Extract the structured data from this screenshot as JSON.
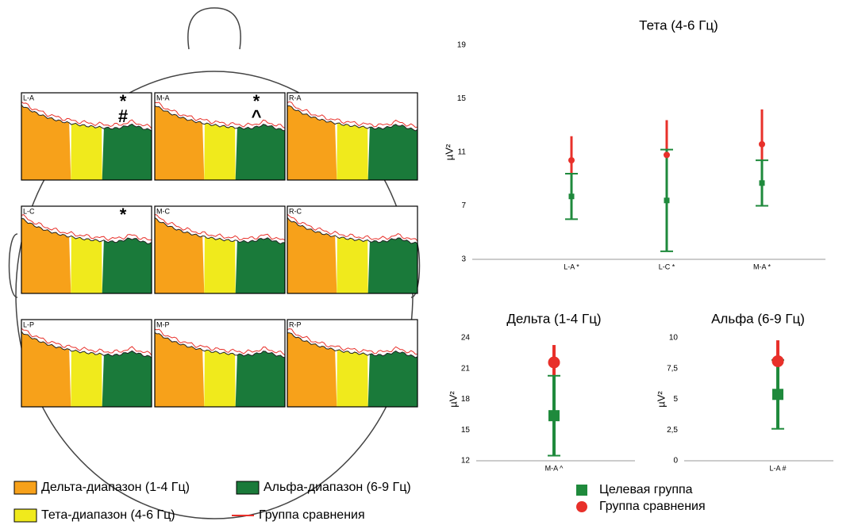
{
  "topomap": {
    "panels": [
      {
        "label": "L-A",
        "marks": [
          "*",
          "#"
        ]
      },
      {
        "label": "M-A",
        "marks": [
          "*",
          "^"
        ]
      },
      {
        "label": "R-A"
      },
      {
        "label": "L-C",
        "marks": [
          "*"
        ]
      },
      {
        "label": "M-C"
      },
      {
        "label": "R-C"
      },
      {
        "label": "L-P"
      },
      {
        "label": "M-P"
      },
      {
        "label": "R-P"
      }
    ],
    "legend": [
      "Дельта-диапазон (1-4 Гц)",
      "Альфа-диапазон (6-9 Гц)",
      "Тета-диапазон (4-6 Гц)",
      "Группа сравнения"
    ]
  },
  "chart_data": [
    {
      "type": "errorbar",
      "title": "Тета (4-6 Гц)",
      "y_label": "µV²",
      "categories": [
        "L-A *",
        "L-C *",
        "M-A *"
      ],
      "ylim": [
        3,
        19
      ],
      "yticks": [
        3,
        7,
        11,
        15,
        19
      ],
      "series": [
        {
          "name": "Целевая группа",
          "color": "#1f8a3c",
          "values": [
            7.7,
            7.4,
            8.7
          ],
          "errors": [
            1.7,
            3.8,
            1.7
          ]
        },
        {
          "name": "Группа сравнения",
          "color": "#e8302a",
          "values": [
            10.4,
            10.8,
            11.6
          ],
          "errors": [
            1.8,
            2.6,
            2.6
          ]
        }
      ]
    },
    {
      "type": "errorbar",
      "title": "Дельта (1-4 Гц)",
      "y_label": "µV²",
      "categories": [
        "M-A ^"
      ],
      "ylim": [
        12,
        24
      ],
      "yticks": [
        12,
        15,
        18,
        21,
        24
      ],
      "series": [
        {
          "color": "#1f8a3c",
          "values": [
            16.4
          ],
          "errors": [
            3.9
          ]
        },
        {
          "color": "#e8302a",
          "values": [
            21.6
          ],
          "errors": [
            1.7
          ]
        }
      ]
    },
    {
      "type": "errorbar",
      "title": "Альфа (6-9 Гц)",
      "y_label": "µV²",
      "categories": [
        "L-A #"
      ],
      "ylim": [
        0,
        10
      ],
      "yticks": [
        0,
        {
          "value": 2.5,
          "label": "2,5"
        },
        5,
        {
          "value": 7.5,
          "label": "7,5"
        },
        10
      ],
      "series": [
        {
          "color": "#1f8a3c",
          "values": [
            5.4
          ],
          "errors": [
            2.8
          ]
        },
        {
          "color": "#e8302a",
          "values": [
            8.1
          ],
          "errors": [
            1.7
          ]
        }
      ]
    }
  ]
}
